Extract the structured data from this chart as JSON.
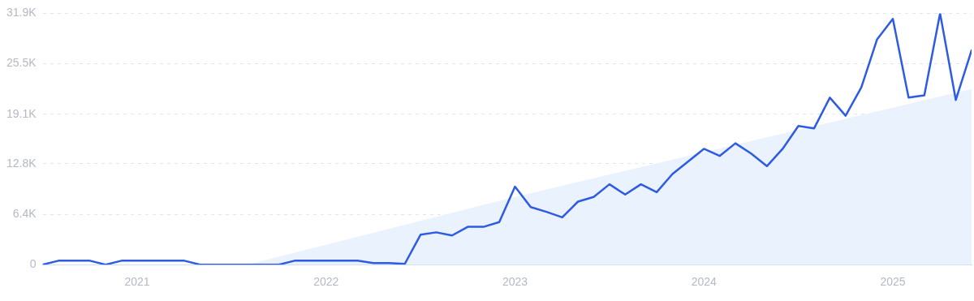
{
  "chart_data": {
    "type": "line",
    "x": [
      "2020-07",
      "2020-08",
      "2020-09",
      "2020-10",
      "2020-11",
      "2020-12",
      "2021-01",
      "2021-02",
      "2021-03",
      "2021-04",
      "2021-05",
      "2021-06",
      "2021-07",
      "2021-08",
      "2021-09",
      "2021-10",
      "2021-11",
      "2021-12",
      "2022-01",
      "2022-02",
      "2022-03",
      "2022-04",
      "2022-05",
      "2022-06",
      "2022-07",
      "2022-08",
      "2022-09",
      "2022-10",
      "2022-11",
      "2022-12",
      "2023-01",
      "2023-02",
      "2023-03",
      "2023-04",
      "2023-05",
      "2023-06",
      "2023-07",
      "2023-08",
      "2023-09",
      "2023-10",
      "2023-11",
      "2023-12",
      "2024-01",
      "2024-02",
      "2024-03",
      "2024-04",
      "2024-05",
      "2024-06",
      "2024-07",
      "2024-08",
      "2024-09",
      "2024-10",
      "2024-11",
      "2024-12",
      "2025-01",
      "2025-02",
      "2025-03",
      "2025-04",
      "2025-05",
      "2025-06"
    ],
    "series": [
      {
        "type": "area",
        "color": "#eaf2fd",
        "x": [
          "2021-08",
          "2023-01",
          "2025-06"
        ],
        "values": [
          0,
          8.6,
          22.3
        ]
      },
      {
        "color": "#2d5be3",
        "values": [
          0,
          0.5,
          0.5,
          0.5,
          0,
          0.5,
          0.5,
          0.5,
          0.5,
          0.5,
          0,
          0,
          0,
          0,
          0,
          0,
          0.5,
          0.5,
          0.5,
          0.5,
          0.5,
          0.2,
          0.2,
          0.1,
          3.8,
          4.1,
          3.7,
          4.8,
          4.8,
          5.4,
          9.9,
          7.3,
          6.7,
          6.0,
          8.0,
          8.6,
          10.2,
          8.9,
          10.2,
          9.2,
          11.5,
          13.1,
          14.7,
          13.8,
          15.4,
          14.1,
          12.5,
          14.7,
          17.6,
          17.3,
          21.2,
          18.9,
          22.5,
          28.6,
          31.2,
          21.2,
          21.5,
          31.9,
          20.9,
          27.2
        ]
      }
    ],
    "xlim": [
      "2020-07",
      "2025-06"
    ],
    "xticks": [
      "2021",
      "2022",
      "2023",
      "2024",
      "2025"
    ],
    "ylim": [
      0,
      31.9
    ],
    "yticks": [
      0,
      {
        "value": 6.4,
        "label": "6.4K"
      },
      {
        "value": 12.8,
        "label": "12.8K"
      },
      {
        "value": 19.1,
        "label": "19.1K"
      },
      {
        "value": 25.5,
        "label": "25.5K"
      },
      {
        "value": 31.9,
        "label": "31.9K"
      }
    ],
    "grid": "y",
    "legend": false,
    "marker": "none",
    "line_style": "solid"
  }
}
